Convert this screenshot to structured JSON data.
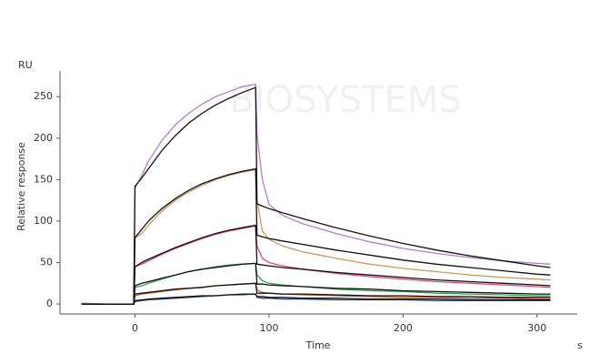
{
  "chart_data": {
    "type": "line",
    "watermark": "BIOSYSTEMS",
    "y_unit": "RU",
    "y_label": "Relative response",
    "x_label": "Time",
    "x_unit": "s",
    "x": [
      -40,
      -20,
      -1,
      0,
      5,
      10,
      20,
      30,
      40,
      50,
      60,
      70,
      80,
      90,
      91,
      95,
      100,
      110,
      125,
      150,
      175,
      200,
      225,
      250,
      275,
      300,
      310
    ],
    "xlim": [
      -56,
      330
    ],
    "ylim": [
      -12,
      281
    ],
    "xticks": [
      0,
      100,
      200,
      300
    ],
    "yticks": [
      0,
      50,
      100,
      150,
      200,
      250
    ],
    "series": [
      {
        "color": "#b57bd1",
        "values": [
          1,
          0,
          0,
          140,
          155,
          172,
          197,
          216,
          230,
          241,
          250,
          256,
          262,
          265,
          205,
          150,
          120,
          107,
          97,
          85,
          75,
          67,
          61,
          56,
          52,
          49,
          48
        ]
      },
      {
        "color": "#c99a5b",
        "values": [
          0,
          0,
          0,
          80,
          85,
          95,
          112,
          125,
          135,
          143,
          150,
          155,
          159,
          162,
          125,
          88,
          78,
          70,
          63,
          55,
          48,
          43,
          39,
          35,
          32,
          30,
          29
        ]
      },
      {
        "color": "#e8457a",
        "values": [
          0,
          0,
          0,
          45,
          48,
          52,
          60,
          67,
          73,
          79,
          84,
          88,
          91,
          94,
          70,
          55,
          50,
          46,
          42,
          37,
          33,
          30,
          27,
          25,
          23,
          21,
          20
        ]
      },
      {
        "color": "#2e9e4f",
        "values": [
          0,
          0,
          0,
          20,
          22,
          25,
          30,
          35,
          39,
          42,
          45,
          47,
          48,
          49,
          35,
          28,
          25,
          23,
          21,
          18,
          16,
          15,
          13,
          12,
          11,
          10,
          10
        ]
      },
      {
        "color": "#c8612a",
        "values": [
          0,
          0,
          0,
          10,
          12,
          13,
          15,
          17,
          19,
          20,
          22,
          23,
          24,
          25,
          17,
          14,
          13,
          12,
          11,
          10,
          9,
          8,
          8,
          7,
          7,
          6,
          6
        ]
      },
      {
        "color": "#2a3f8f",
        "values": [
          0,
          0,
          0,
          3,
          4,
          5,
          6,
          7,
          8,
          9,
          10,
          11,
          11,
          12,
          8,
          7,
          7,
          6,
          6,
          5,
          5,
          5,
          4,
          4,
          4,
          4,
          4
        ]
      },
      {
        "color": "#111111",
        "values": [
          0,
          0,
          0,
          142,
          152,
          163,
          185,
          203,
          218,
          230,
          240,
          248,
          255,
          261,
          121,
          118,
          115,
          110,
          103,
          92,
          82,
          73,
          65,
          58,
          52,
          46,
          44
        ]
      },
      {
        "color": "#111111",
        "values": [
          0,
          0,
          0,
          80,
          90,
          100,
          115,
          127,
          137,
          145,
          151,
          156,
          160,
          163,
          83,
          81,
          79,
          76,
          72,
          65,
          59,
          53,
          48,
          44,
          40,
          36,
          35
        ]
      },
      {
        "color": "#111111",
        "values": [
          0,
          0,
          0,
          45,
          50,
          54,
          61,
          68,
          74,
          80,
          85,
          89,
          92,
          95,
          48,
          47,
          46,
          44,
          42,
          38,
          35,
          32,
          29,
          27,
          25,
          23,
          22
        ]
      },
      {
        "color": "#111111",
        "values": [
          0,
          0,
          0,
          22,
          25,
          27,
          31,
          35,
          39,
          42,
          44,
          46,
          48,
          49,
          24,
          24,
          23,
          22,
          21,
          19,
          18,
          16,
          15,
          14,
          13,
          12,
          12
        ]
      },
      {
        "color": "#111111",
        "values": [
          0,
          0,
          0,
          12,
          13,
          14,
          16,
          18,
          19,
          20,
          22,
          23,
          24,
          25,
          13,
          13,
          13,
          12,
          12,
          11,
          10,
          10,
          9,
          9,
          8,
          8,
          8
        ]
      },
      {
        "color": "#111111",
        "values": [
          0,
          0,
          0,
          4,
          5,
          6,
          7,
          8,
          9,
          10,
          10,
          11,
          12,
          12,
          9,
          9,
          8,
          8,
          7,
          7,
          6,
          6,
          6,
          5,
          5,
          5,
          5
        ]
      }
    ]
  }
}
